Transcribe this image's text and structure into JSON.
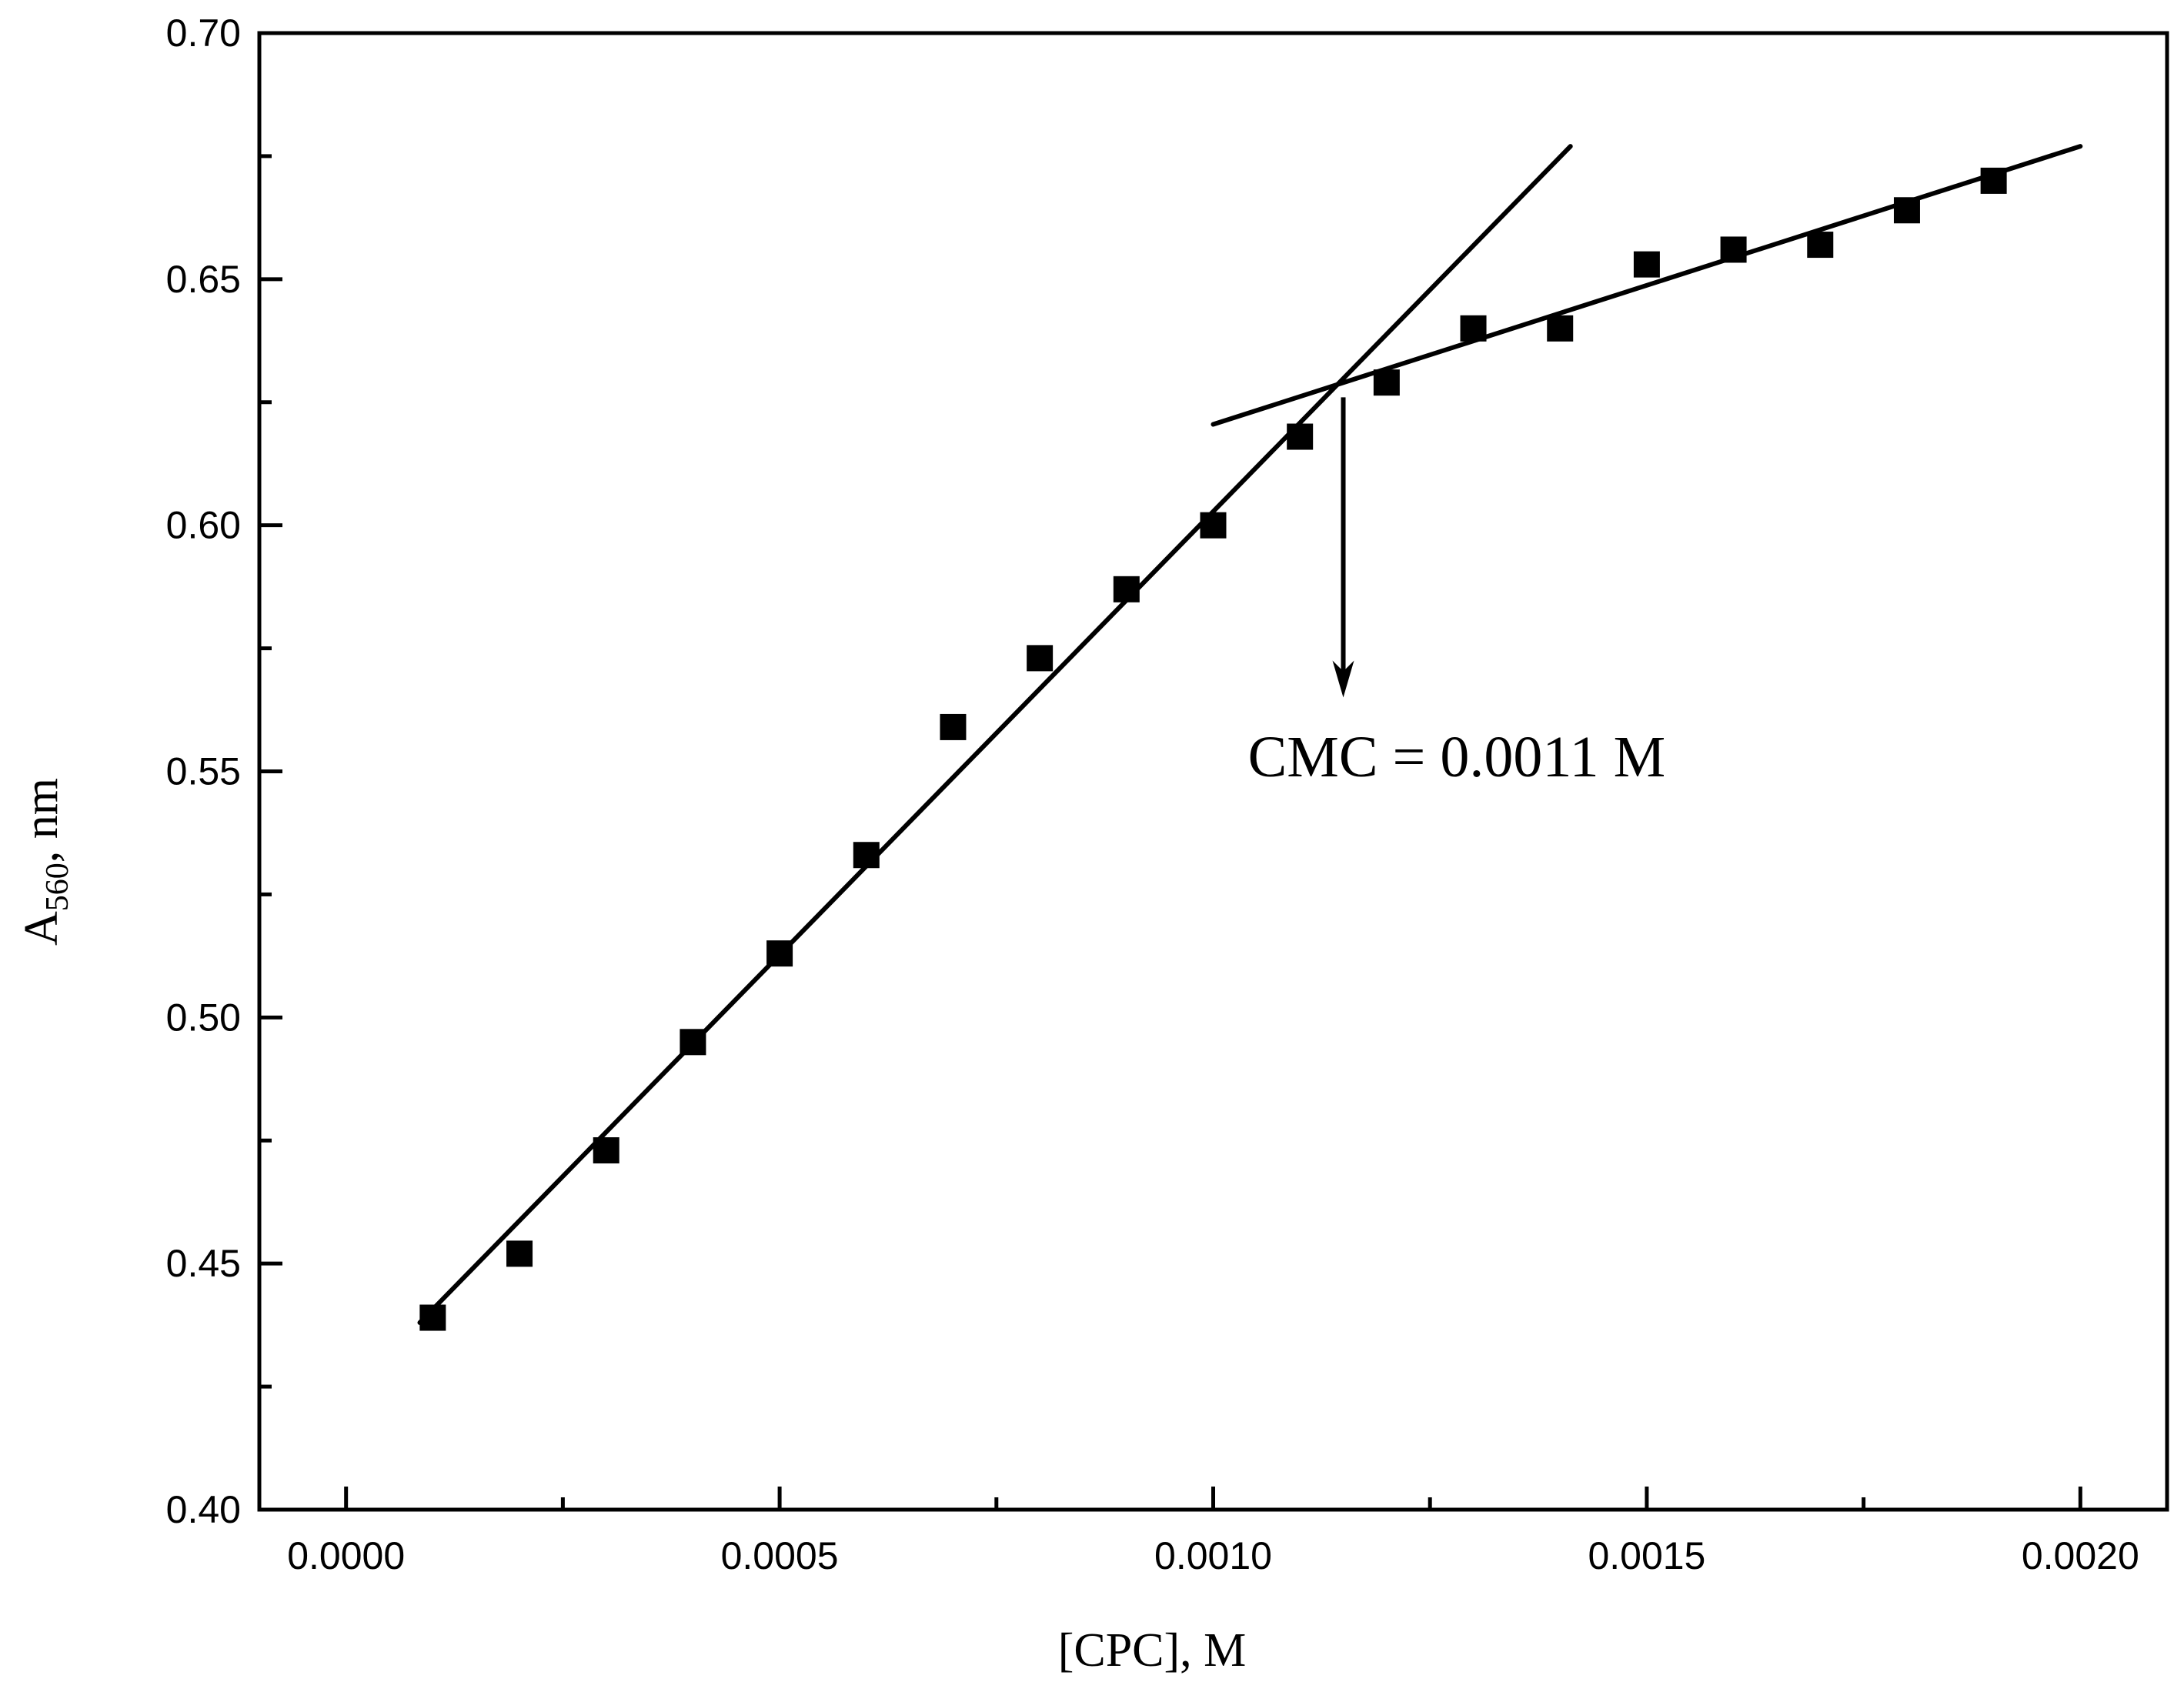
{
  "chart_data": {
    "type": "scatter",
    "title": "",
    "xlabel": "[CPC], M",
    "ylabel": {
      "base": "A",
      "subscript": "560",
      "suffix": ", nm"
    },
    "xlim": [
      -0.0001,
      0.0021
    ],
    "ylim": [
      0.4,
      0.7
    ],
    "x_ticks": [
      0.0,
      0.0005,
      0.001,
      0.0015,
      0.002
    ],
    "x_tick_labels": [
      "0.0000",
      "0.0005",
      "0.0010",
      "0.0015",
      "0.0020"
    ],
    "x_minor_ticks": [
      0.00025,
      0.00075,
      0.00125,
      0.00175
    ],
    "y_ticks": [
      0.4,
      0.45,
      0.5,
      0.55,
      0.6,
      0.65,
      0.7
    ],
    "y_tick_labels": [
      "0.40",
      "0.45",
      "0.50",
      "0.55",
      "0.60",
      "0.65",
      "0.70"
    ],
    "y_minor_ticks": [
      0.425,
      0.475,
      0.525,
      0.575,
      0.625,
      0.675
    ],
    "grid": false,
    "series": [
      {
        "name": "A560",
        "marker": "square",
        "color": "#000000",
        "x": [
          0.0001,
          0.0002,
          0.0003,
          0.0004,
          0.0005,
          0.0006,
          0.0007,
          0.0008,
          0.0009,
          0.001,
          0.0011,
          0.0012,
          0.0013,
          0.0014,
          0.0015,
          0.0016,
          0.0017,
          0.0018,
          0.0019
        ],
        "y": [
          0.439,
          0.452,
          0.473,
          0.495,
          0.513,
          0.533,
          0.559,
          0.573,
          0.587,
          0.6,
          0.618,
          0.629,
          0.64,
          0.64,
          0.653,
          0.656,
          0.657,
          0.664,
          0.67
        ]
      }
    ],
    "fit_lines": [
      {
        "name": "pre-micellar fit",
        "x": [
          8.5e-05,
          0.001412
        ],
        "y": [
          0.438,
          0.677
        ]
      },
      {
        "name": "post-micellar fit",
        "x": [
          0.001,
          0.002
        ],
        "y": [
          0.6205,
          0.677
        ]
      }
    ],
    "arrow": {
      "x": 0.00115,
      "y_from": 0.626,
      "y_to": 0.565
    },
    "annotations": [
      {
        "text": "CMC = 0.0011 M",
        "x": 0.00104,
        "y": 0.549
      }
    ]
  }
}
